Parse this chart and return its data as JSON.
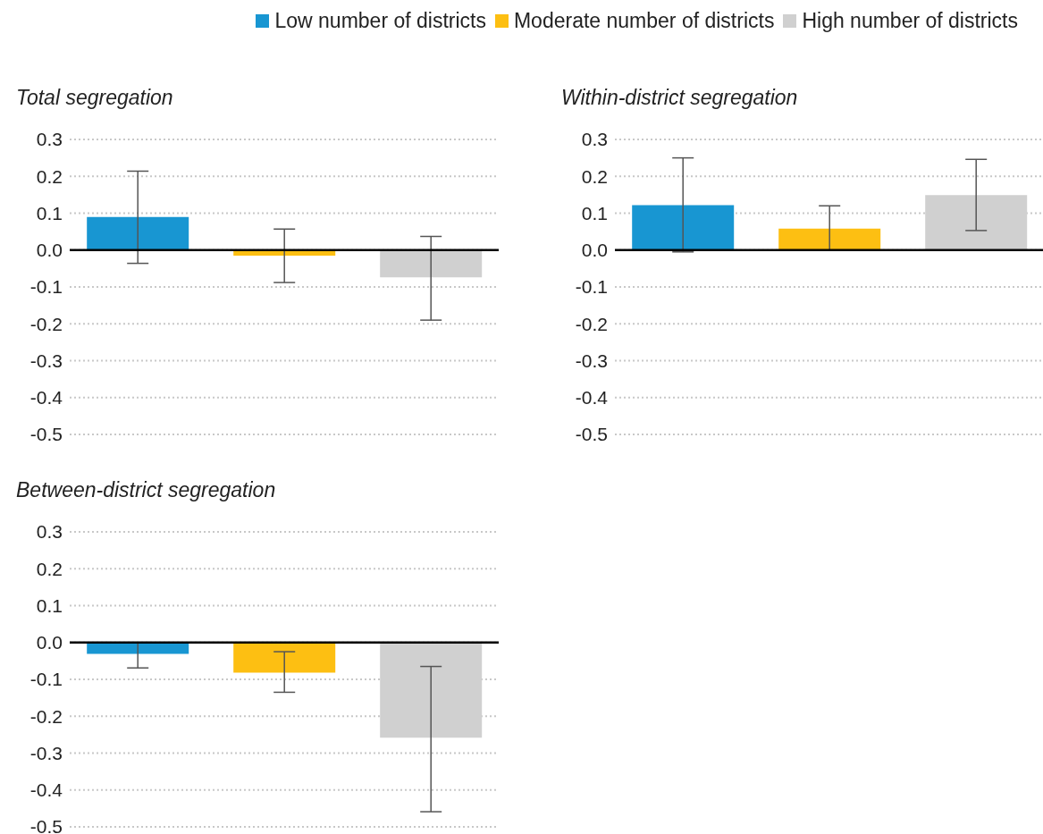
{
  "chart_data": [
    {
      "type": "bar",
      "title": "Total segregation",
      "categories": [
        null
      ],
      "legend": "top",
      "grid": "y",
      "ylim": [
        -0.5,
        0.3
      ],
      "yticks": [
        {
          "value": -0.5,
          "label": "-0.5"
        },
        {
          "value": -0.4,
          "label": "-0.4"
        },
        {
          "value": -0.3,
          "label": "-0.3"
        },
        {
          "value": -0.2,
          "label": "-0.2"
        },
        {
          "value": -0.1,
          "label": "-0.1"
        },
        {
          "value": 0,
          "label": "0.0"
        },
        {
          "value": 0.1,
          "label": "0.1"
        },
        {
          "value": 0.2,
          "label": "0.2"
        },
        {
          "value": 0.3,
          "label": "0.3"
        }
      ],
      "series": [
        {
          "name": "Low number of districts",
          "color": "#1896d2",
          "values": [
            0.09
          ],
          "errors": [
            [
              -0.036,
              0.214
            ]
          ]
        },
        {
          "name": "Moderate number of districts",
          "color": "#fdbf12",
          "values": [
            -0.015
          ],
          "errors": [
            [
              -0.088,
              0.057
            ]
          ]
        },
        {
          "name": "High number of districts",
          "color": "#d0d0d0",
          "values": [
            -0.074
          ],
          "errors": [
            [
              -0.19,
              0.037
            ]
          ]
        }
      ]
    },
    {
      "type": "bar",
      "title": "Within-district segregation",
      "categories": [
        null
      ],
      "grid": "y",
      "ylim": [
        -0.5,
        0.3
      ],
      "yticks": [
        {
          "value": -0.5,
          "label": "-0.5"
        },
        {
          "value": -0.4,
          "label": "-0.4"
        },
        {
          "value": -0.3,
          "label": "-0.3"
        },
        {
          "value": -0.2,
          "label": "-0.2"
        },
        {
          "value": -0.1,
          "label": "-0.1"
        },
        {
          "value": 0,
          "label": "0.0"
        },
        {
          "value": 0.1,
          "label": "0.1"
        },
        {
          "value": 0.2,
          "label": "0.2"
        },
        {
          "value": 0.3,
          "label": "0.3"
        }
      ],
      "series": [
        {
          "color": "#1896d2",
          "values": [
            0.122
          ],
          "errors": [
            [
              -0.005,
              0.25
            ]
          ]
        },
        {
          "color": "#fdbf12",
          "values": [
            0.058
          ],
          "errors": [
            [
              0,
              0.12
            ]
          ]
        },
        {
          "color": "#d0d0d0",
          "values": [
            0.149
          ],
          "errors": [
            [
              0.053,
              0.246
            ]
          ]
        }
      ]
    },
    {
      "type": "bar",
      "title": "Between-district segregation",
      "categories": [
        null
      ],
      "grid": "y",
      "ylim": [
        -0.5,
        0.3
      ],
      "yticks": [
        {
          "value": -0.5,
          "label": "-0.5"
        },
        {
          "value": -0.4,
          "label": "-0.4"
        },
        {
          "value": -0.3,
          "label": "-0.3"
        },
        {
          "value": -0.2,
          "label": "-0.2"
        },
        {
          "value": -0.1,
          "label": "-0.1"
        },
        {
          "value": 0,
          "label": "0.0"
        },
        {
          "value": 0.1,
          "label": "0.1"
        },
        {
          "value": 0.2,
          "label": "0.2"
        },
        {
          "value": 0.3,
          "label": "0.3"
        }
      ],
      "series": [
        {
          "color": "#1896d2",
          "values": [
            -0.031
          ],
          "errors": [
            [
              -0.069,
              0
            ]
          ]
        },
        {
          "color": "#fdbf12",
          "values": [
            -0.082
          ],
          "errors": [
            [
              -0.135,
              -0.025
            ]
          ]
        },
        {
          "color": "#d0d0d0",
          "values": [
            -0.258
          ],
          "errors": [
            [
              -0.459,
              -0.065
            ]
          ]
        }
      ]
    }
  ]
}
